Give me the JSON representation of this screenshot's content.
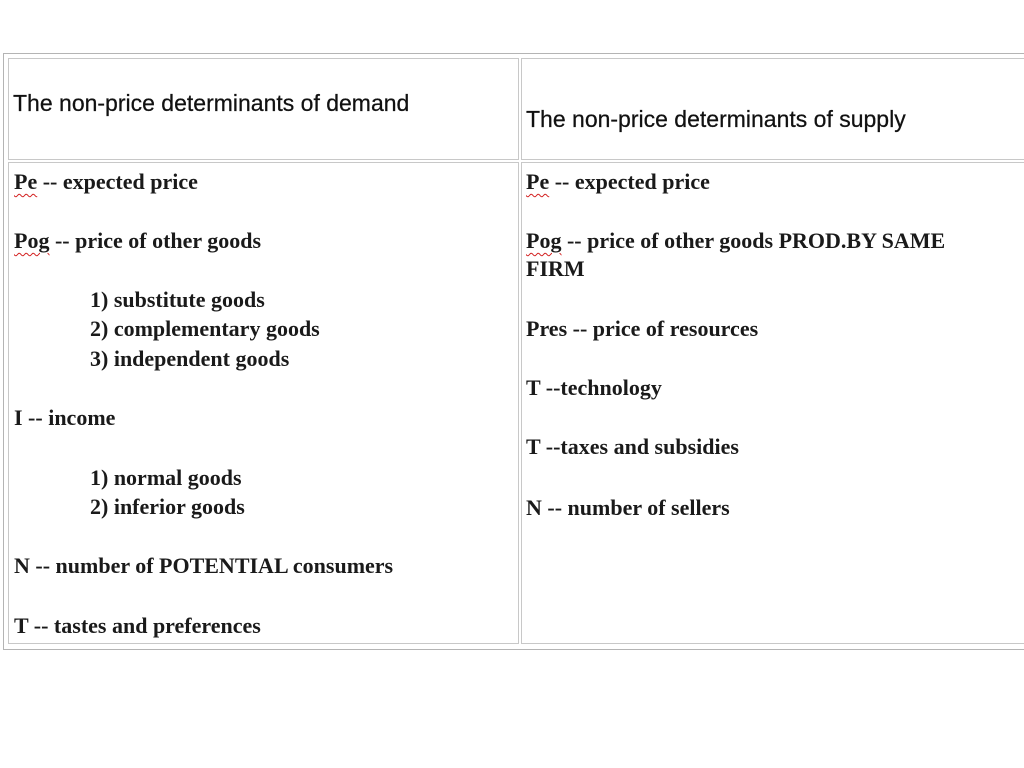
{
  "headers": {
    "demand": "The non-price determinants of demand",
    "supply": "The non-price determinants of supply"
  },
  "demand": {
    "pe_abbr": "Pe",
    "pe_rest": " -- expected price",
    "pog_abbr": "Pog",
    "pog_rest": " -- price of other goods",
    "pog_items": [
      "1) substitute goods",
      "2) complementary goods",
      "3) independent goods"
    ],
    "income": "I -- income",
    "income_items": [
      "1) normal goods",
      "2) inferior goods"
    ],
    "consumers": "N -- number of POTENTIAL consumers",
    "tastes": "T -- tastes and preferences"
  },
  "supply": {
    "pe_abbr": "Pe",
    "pe_rest": " -- expected price",
    "pog_abbr": "Pog",
    "pog_rest_line1": " -- price of other goods PROD.BY SAME",
    "pog_rest_line2": "FIRM",
    "resources": "Pres -- price of resources",
    "technology": "T --technology",
    "taxes": "T --taxes and subsidies",
    "sellers": "N -- number of sellers"
  },
  "colors": {
    "border": "#c8c8c8",
    "spellcheck_underline": "#d21e1e",
    "text": "#1a1a1a"
  }
}
